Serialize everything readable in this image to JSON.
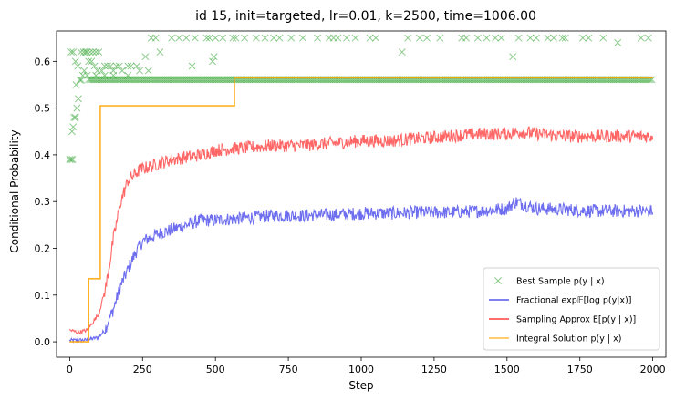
{
  "chart_data": {
    "type": "line",
    "title": "id 15, init=targeted, lr=0.01, k=2500, time=1006.00",
    "xlabel": "Step",
    "ylabel": "Conditional Probability",
    "xlim": [
      -45,
      2045
    ],
    "ylim": [
      -0.033,
      0.665
    ],
    "xticks": [
      0,
      250,
      500,
      750,
      1000,
      1250,
      1500,
      1750,
      2000
    ],
    "xtick_labels": [
      "0",
      "250",
      "500",
      "750",
      "1000",
      "1250",
      "1500",
      "1750",
      "2000"
    ],
    "yticks": [
      0.0,
      0.1,
      0.2,
      0.3,
      0.4,
      0.5,
      0.6
    ],
    "ytick_labels": [
      "0.0",
      "0.1",
      "0.2",
      "0.3",
      "0.4",
      "0.5",
      "0.6"
    ],
    "grid": false,
    "legend_position": "lower-right",
    "series": [
      {
        "name": "Best Sample p(y | x)",
        "kind": "scatter",
        "marker": "x",
        "color": "#2ca02c",
        "points": [
          [
            0,
            0.39
          ],
          [
            5,
            0.39
          ],
          [
            10,
            0.39
          ],
          [
            5,
            0.62
          ],
          [
            12,
            0.62
          ],
          [
            8,
            0.45
          ],
          [
            15,
            0.48
          ],
          [
            20,
            0.48
          ],
          [
            12,
            0.46
          ],
          [
            25,
            0.5
          ],
          [
            30,
            0.52
          ],
          [
            22,
            0.55
          ],
          [
            35,
            0.56
          ],
          [
            40,
            0.56
          ],
          [
            45,
            0.57
          ],
          [
            50,
            0.58
          ],
          [
            20,
            0.6
          ],
          [
            28,
            0.59
          ],
          [
            38,
            0.62
          ],
          [
            48,
            0.62
          ],
          [
            55,
            0.62
          ],
          [
            60,
            0.62
          ],
          [
            70,
            0.62
          ],
          [
            80,
            0.62
          ],
          [
            90,
            0.62
          ],
          [
            100,
            0.62
          ],
          [
            65,
            0.6
          ],
          [
            75,
            0.6
          ],
          [
            85,
            0.59
          ],
          [
            95,
            0.58
          ],
          [
            110,
            0.58
          ],
          [
            120,
            0.59
          ],
          [
            130,
            0.59
          ],
          [
            140,
            0.59
          ],
          [
            150,
            0.58
          ],
          [
            160,
            0.59
          ],
          [
            170,
            0.59
          ],
          [
            180,
            0.58
          ],
          [
            200,
            0.59
          ],
          [
            210,
            0.59
          ],
          [
            230,
            0.59
          ],
          [
            240,
            0.58
          ],
          [
            60,
            0.57
          ],
          [
            90,
            0.57
          ],
          [
            120,
            0.57
          ],
          [
            150,
            0.57
          ],
          [
            200,
            0.57
          ],
          [
            260,
            0.61
          ],
          [
            270,
            0.58
          ],
          [
            280,
            0.65
          ],
          [
            295,
            0.65
          ],
          [
            310,
            0.62
          ],
          [
            350,
            0.65
          ],
          [
            375,
            0.65
          ],
          [
            400,
            0.65
          ],
          [
            420,
            0.59
          ],
          [
            430,
            0.65
          ],
          [
            470,
            0.65
          ],
          [
            480,
            0.65
          ],
          [
            490,
            0.6
          ],
          [
            495,
            0.61
          ],
          [
            500,
            0.65
          ],
          [
            525,
            0.65
          ],
          [
            560,
            0.65
          ],
          [
            570,
            0.65
          ],
          [
            600,
            0.65
          ],
          [
            640,
            0.65
          ],
          [
            670,
            0.65
          ],
          [
            700,
            0.65
          ],
          [
            720,
            0.65
          ],
          [
            760,
            0.65
          ],
          [
            800,
            0.65
          ],
          [
            850,
            0.65
          ],
          [
            890,
            0.65
          ],
          [
            905,
            0.65
          ],
          [
            920,
            0.65
          ],
          [
            950,
            0.65
          ],
          [
            980,
            0.65
          ],
          [
            1030,
            0.65
          ],
          [
            1050,
            0.65
          ],
          [
            1140,
            0.62
          ],
          [
            1160,
            0.65
          ],
          [
            1200,
            0.65
          ],
          [
            1225,
            0.65
          ],
          [
            1270,
            0.65
          ],
          [
            1345,
            0.65
          ],
          [
            1360,
            0.65
          ],
          [
            1400,
            0.65
          ],
          [
            1430,
            0.65
          ],
          [
            1460,
            0.65
          ],
          [
            1480,
            0.65
          ],
          [
            1520,
            0.61
          ],
          [
            1540,
            0.65
          ],
          [
            1580,
            0.65
          ],
          [
            1600,
            0.65
          ],
          [
            1640,
            0.65
          ],
          [
            1660,
            0.65
          ],
          [
            1690,
            0.65
          ],
          [
            1700,
            0.65
          ],
          [
            1760,
            0.65
          ],
          [
            1780,
            0.65
          ],
          [
            1830,
            0.65
          ],
          [
            1880,
            0.64
          ],
          [
            1960,
            0.65
          ],
          [
            1985,
            0.65
          ]
        ],
        "band": {
          "x_start": 65,
          "x_end": 2000,
          "y": 0.561,
          "spacing": 6
        }
      },
      {
        "name": "Fractional exp𝔼[log p(y|x)]",
        "kind": "line",
        "color": "#1f1fe6",
        "opacity": 0.65,
        "points": [
          [
            0,
            0.003
          ],
          [
            60,
            0.004
          ],
          [
            100,
            0.01
          ],
          [
            120,
            0.025
          ],
          [
            150,
            0.07
          ],
          [
            175,
            0.12
          ],
          [
            200,
            0.155
          ],
          [
            225,
            0.19
          ],
          [
            250,
            0.215
          ],
          [
            300,
            0.23
          ],
          [
            350,
            0.24
          ],
          [
            400,
            0.25
          ],
          [
            450,
            0.26
          ],
          [
            500,
            0.26
          ],
          [
            600,
            0.265
          ],
          [
            700,
            0.27
          ],
          [
            800,
            0.27
          ],
          [
            900,
            0.272
          ],
          [
            1000,
            0.275
          ],
          [
            1100,
            0.275
          ],
          [
            1200,
            0.277
          ],
          [
            1300,
            0.277
          ],
          [
            1400,
            0.28
          ],
          [
            1500,
            0.285
          ],
          [
            1530,
            0.3
          ],
          [
            1600,
            0.285
          ],
          [
            1700,
            0.283
          ],
          [
            1800,
            0.28
          ],
          [
            1900,
            0.28
          ],
          [
            2000,
            0.28
          ]
        ]
      },
      {
        "name": "Sampling Approx E[p(y | x)]",
        "kind": "line",
        "color": "#ff0000",
        "opacity": 0.6,
        "points": [
          [
            0,
            0.025
          ],
          [
            30,
            0.02
          ],
          [
            60,
            0.025
          ],
          [
            100,
            0.06
          ],
          [
            125,
            0.12
          ],
          [
            150,
            0.22
          ],
          [
            175,
            0.3
          ],
          [
            200,
            0.345
          ],
          [
            225,
            0.36
          ],
          [
            250,
            0.37
          ],
          [
            300,
            0.38
          ],
          [
            350,
            0.39
          ],
          [
            400,
            0.395
          ],
          [
            450,
            0.4
          ],
          [
            500,
            0.41
          ],
          [
            600,
            0.415
          ],
          [
            700,
            0.42
          ],
          [
            800,
            0.42
          ],
          [
            900,
            0.425
          ],
          [
            1000,
            0.43
          ],
          [
            1100,
            0.43
          ],
          [
            1200,
            0.435
          ],
          [
            1300,
            0.44
          ],
          [
            1400,
            0.445
          ],
          [
            1500,
            0.445
          ],
          [
            1550,
            0.45
          ],
          [
            1600,
            0.445
          ],
          [
            1700,
            0.44
          ],
          [
            1800,
            0.44
          ],
          [
            1900,
            0.44
          ],
          [
            2000,
            0.44
          ]
        ]
      },
      {
        "name": "Integral Solution p(y | x)",
        "kind": "step",
        "color": "#ffa500",
        "opacity": 0.85,
        "points": [
          [
            0,
            0.0
          ],
          [
            65,
            0.0
          ],
          [
            65,
            0.135
          ],
          [
            105,
            0.135
          ],
          [
            105,
            0.505
          ],
          [
            565,
            0.505
          ],
          [
            565,
            0.565
          ],
          [
            2000,
            0.565
          ]
        ]
      }
    ],
    "legend": [
      {
        "label": "Best Sample p(y | x)",
        "marker": "x",
        "color": "#2ca02c"
      },
      {
        "label": "Fractional exp𝔼[log p(y|x)]",
        "marker": "line",
        "color": "#1f1fe6"
      },
      {
        "label": "Sampling Approx E[p(y | x)]",
        "marker": "line",
        "color": "#ff0000"
      },
      {
        "label": "Integral Solution p(y | x)",
        "marker": "line",
        "color": "#ffa500"
      }
    ]
  }
}
